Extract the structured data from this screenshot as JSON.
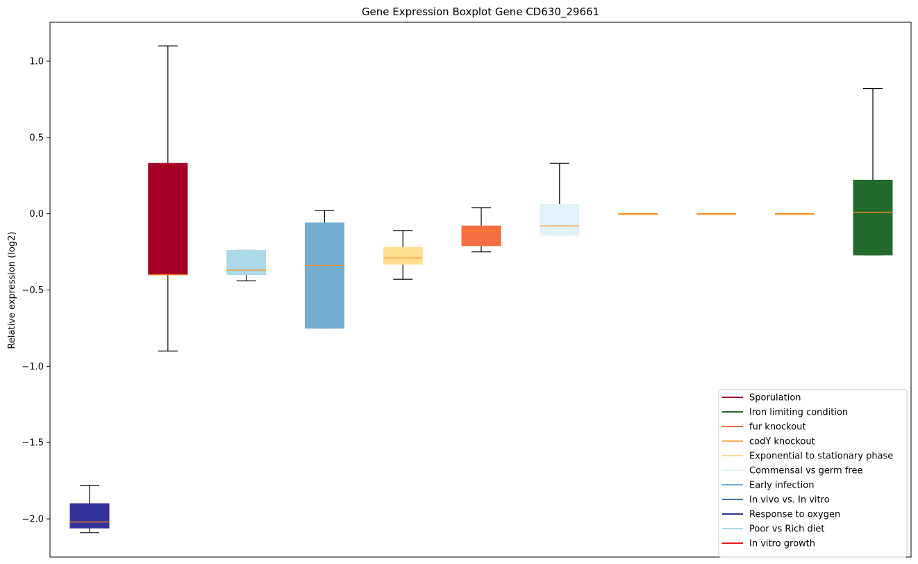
{
  "chart_data": {
    "type": "boxplot",
    "title": "Gene Expression Boxplot Gene CD630_29661",
    "xlabel": "",
    "ylabel": "Relative expression (log2)",
    "ylim": [
      -2.25,
      1.25
    ],
    "yticks": [
      1.0,
      0.5,
      0.0,
      -0.5,
      -1.0,
      -1.5,
      -2.0
    ],
    "ytick_labels": [
      "1.0",
      "0.5",
      "0.0",
      "−0.5",
      "−1.0",
      "−1.5",
      "−2.0"
    ],
    "grid": false,
    "legend_position": "lower-right",
    "median_color": "#ff8c1a",
    "boxes": [
      {
        "color": "#333399",
        "whisker_low": -2.09,
        "q1": -2.06,
        "median": -2.02,
        "q3": -1.9,
        "whisker_high": -1.78
      },
      {
        "color": "#a50026",
        "whisker_low": -0.9,
        "q1": -0.4,
        "median": -0.4,
        "q3": 0.33,
        "whisker_high": 1.1
      },
      {
        "color": "#abd9e9",
        "whisker_low": -0.44,
        "q1": -0.4,
        "median": -0.37,
        "q3": -0.24,
        "whisker_high": -0.24
      },
      {
        "color": "#74add1",
        "whisker_low": -0.75,
        "q1": -0.75,
        "median": -0.34,
        "q3": -0.06,
        "whisker_high": 0.02
      },
      {
        "color": "#fee090",
        "whisker_low": -0.43,
        "q1": -0.33,
        "median": -0.29,
        "q3": -0.22,
        "whisker_high": -0.11
      },
      {
        "color": "#f46d43",
        "whisker_low": -0.25,
        "q1": -0.21,
        "median": -0.11,
        "q3": -0.08,
        "whisker_high": 0.04
      },
      {
        "color": "#e0f3f8",
        "whisker_low": -0.14,
        "q1": -0.14,
        "median": -0.08,
        "q3": 0.06,
        "whisker_high": 0.33
      },
      {
        "color": "#fdae61",
        "whisker_low": 0.0,
        "q1": 0.0,
        "median": 0.0,
        "q3": 0.0,
        "whisker_high": 0.0
      },
      {
        "color": "#fdae61",
        "whisker_low": 0.0,
        "q1": 0.0,
        "median": 0.0,
        "q3": 0.0,
        "whisker_high": 0.0
      },
      {
        "color": "#fdae61",
        "whisker_low": 0.0,
        "q1": 0.0,
        "median": 0.0,
        "q3": 0.0,
        "whisker_high": 0.0
      },
      {
        "color": "#226b2d",
        "whisker_low": -0.27,
        "q1": -0.27,
        "median": 0.01,
        "q3": 0.22,
        "whisker_high": 0.82
      }
    ],
    "legend": [
      {
        "label": "Sporulation",
        "color": "#a50026"
      },
      {
        "label": "Iron limiting condition",
        "color": "#226b2d"
      },
      {
        "label": "fur knockout",
        "color": "#f46d43"
      },
      {
        "label": "codY knockout",
        "color": "#fdae61"
      },
      {
        "label": "Exponential to stationary phase",
        "color": "#fee090"
      },
      {
        "label": "Commensal vs germ free",
        "color": "#e0f3f8"
      },
      {
        "label": "Early infection",
        "color": "#74add1"
      },
      {
        "label": "In vivo vs. In vitro",
        "color": "#4575b4"
      },
      {
        "label": "Response to oxygen",
        "color": "#333399"
      },
      {
        "label": "Poor vs Rich diet",
        "color": "#abd9e9"
      },
      {
        "label": "In vitro growth",
        "color": "#e41a1c"
      }
    ]
  }
}
